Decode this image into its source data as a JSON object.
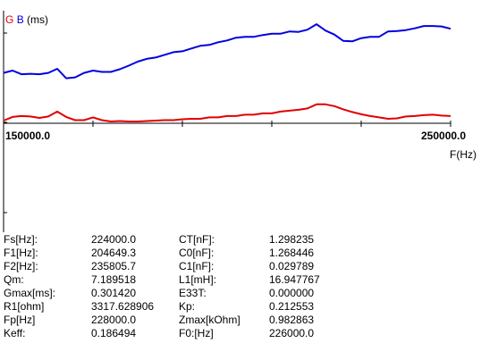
{
  "chart_data": {
    "type": "line",
    "legend": [
      "G",
      "B"
    ],
    "units": "(ms)",
    "xlabel": "F(Hz)",
    "x_tick_labels": [
      "150000.0",
      "250000.0"
    ],
    "xlim": [
      150000,
      250000
    ],
    "grid": false,
    "series": [
      {
        "name": "B",
        "color": "#0000e0",
        "x": [
          150000,
          152000,
          154000,
          156000,
          158000,
          160000,
          162000,
          164000,
          166000,
          168000,
          170000,
          172000,
          174000,
          176000,
          178000,
          180000,
          182000,
          184000,
          186000,
          188000,
          190000,
          192000,
          194000,
          196000,
          198000,
          200000,
          202000,
          204000,
          206000,
          208000,
          210000,
          212000,
          214000,
          216000,
          218000,
          220000,
          222000,
          224000,
          226000,
          228000,
          230000,
          232000,
          234000,
          236000,
          238000,
          240000,
          242000,
          244000,
          246000,
          248000,
          250000
        ],
        "values": [
          0.56,
          0.585,
          0.545,
          0.55,
          0.545,
          0.56,
          0.605,
          0.5,
          0.51,
          0.56,
          0.585,
          0.57,
          0.57,
          0.6,
          0.64,
          0.685,
          0.715,
          0.73,
          0.76,
          0.79,
          0.8,
          0.83,
          0.86,
          0.87,
          0.9,
          0.92,
          0.95,
          0.96,
          0.96,
          0.98,
          0.995,
          0.995,
          1.02,
          1.015,
          1.04,
          1.1,
          1.03,
          0.985,
          0.915,
          0.91,
          0.945,
          0.96,
          0.96,
          1.02,
          1.025,
          1.035,
          1.055,
          1.08,
          1.08,
          1.075,
          1.05
        ]
      },
      {
        "name": "G",
        "color": "#e00000",
        "x": [
          150000,
          152000,
          154000,
          156000,
          158000,
          160000,
          162000,
          164000,
          166000,
          168000,
          170000,
          172000,
          174000,
          176000,
          178000,
          180000,
          182000,
          184000,
          186000,
          188000,
          190000,
          192000,
          194000,
          196000,
          198000,
          200000,
          202000,
          204000,
          206000,
          208000,
          210000,
          212000,
          214000,
          216000,
          218000,
          220000,
          222000,
          224000,
          226000,
          228000,
          230000,
          232000,
          234000,
          236000,
          238000,
          240000,
          242000,
          244000,
          246000,
          248000,
          250000
        ],
        "values": [
          0.03,
          0.07,
          0.08,
          0.075,
          0.06,
          0.075,
          0.13,
          0.07,
          0.035,
          0.035,
          0.065,
          0.035,
          0.02,
          0.025,
          0.02,
          0.02,
          0.025,
          0.03,
          0.035,
          0.035,
          0.045,
          0.05,
          0.05,
          0.065,
          0.065,
          0.08,
          0.08,
          0.095,
          0.095,
          0.11,
          0.11,
          0.13,
          0.14,
          0.15,
          0.165,
          0.21,
          0.21,
          0.19,
          0.155,
          0.125,
          0.1,
          0.08,
          0.065,
          0.05,
          0.055,
          0.075,
          0.08,
          0.09,
          0.095,
          0.085,
          0.08
        ]
      }
    ],
    "ylim": [
      0,
      1.25
    ]
  },
  "params": [
    {
      "k1": "Fs[Hz]:",
      "v1": "224000.0",
      "k2": "CT[nF]:",
      "v2": "1.298235"
    },
    {
      "k1": "F1[Hz]:",
      "v1": "204649.3",
      "k2": "C0[nF]:",
      "v2": "1.268446"
    },
    {
      "k1": "F2[Hz]:",
      "v1": "235805.7",
      "k2": "C1[nF]:",
      "v2": "0.029789"
    },
    {
      "k1": "Qm:",
      "v1": "7.189518",
      "k2": "L1[mH]:",
      "v2": "16.947767"
    },
    {
      "k1": "Gmax[ms]:",
      "v1": "0.301420",
      "k2": "E33T:",
      "v2": "0.000000"
    },
    {
      "k1": "R1[ohm]",
      "v1": "3317.628906",
      "k2": "Kp:",
      "v2": "0.212553"
    },
    {
      "k1": "Fp[Hz]",
      "v1": "228000.0",
      "k2": "Zmax[kOhm]",
      "v2": "0.982863"
    },
    {
      "k1": "Keff:",
      "v1": "0.186494",
      "k2": "F0:[Hz]",
      "v2": "226000.0"
    }
  ]
}
